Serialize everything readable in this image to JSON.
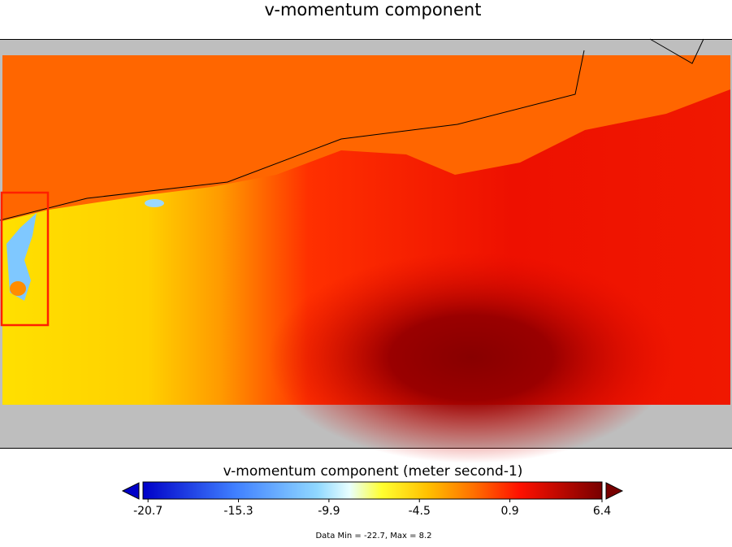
{
  "title": "v-momentum component",
  "colorbar": {
    "label": "v-momentum component (meter second-1)",
    "clim": [
      -21.0,
      6.4
    ],
    "ticks": [
      -20.7,
      -15.3,
      -9.9,
      -4.5,
      0.9,
      6.4
    ]
  },
  "data_range_note": "Data Min = -22.7, Max = 8.2"
}
